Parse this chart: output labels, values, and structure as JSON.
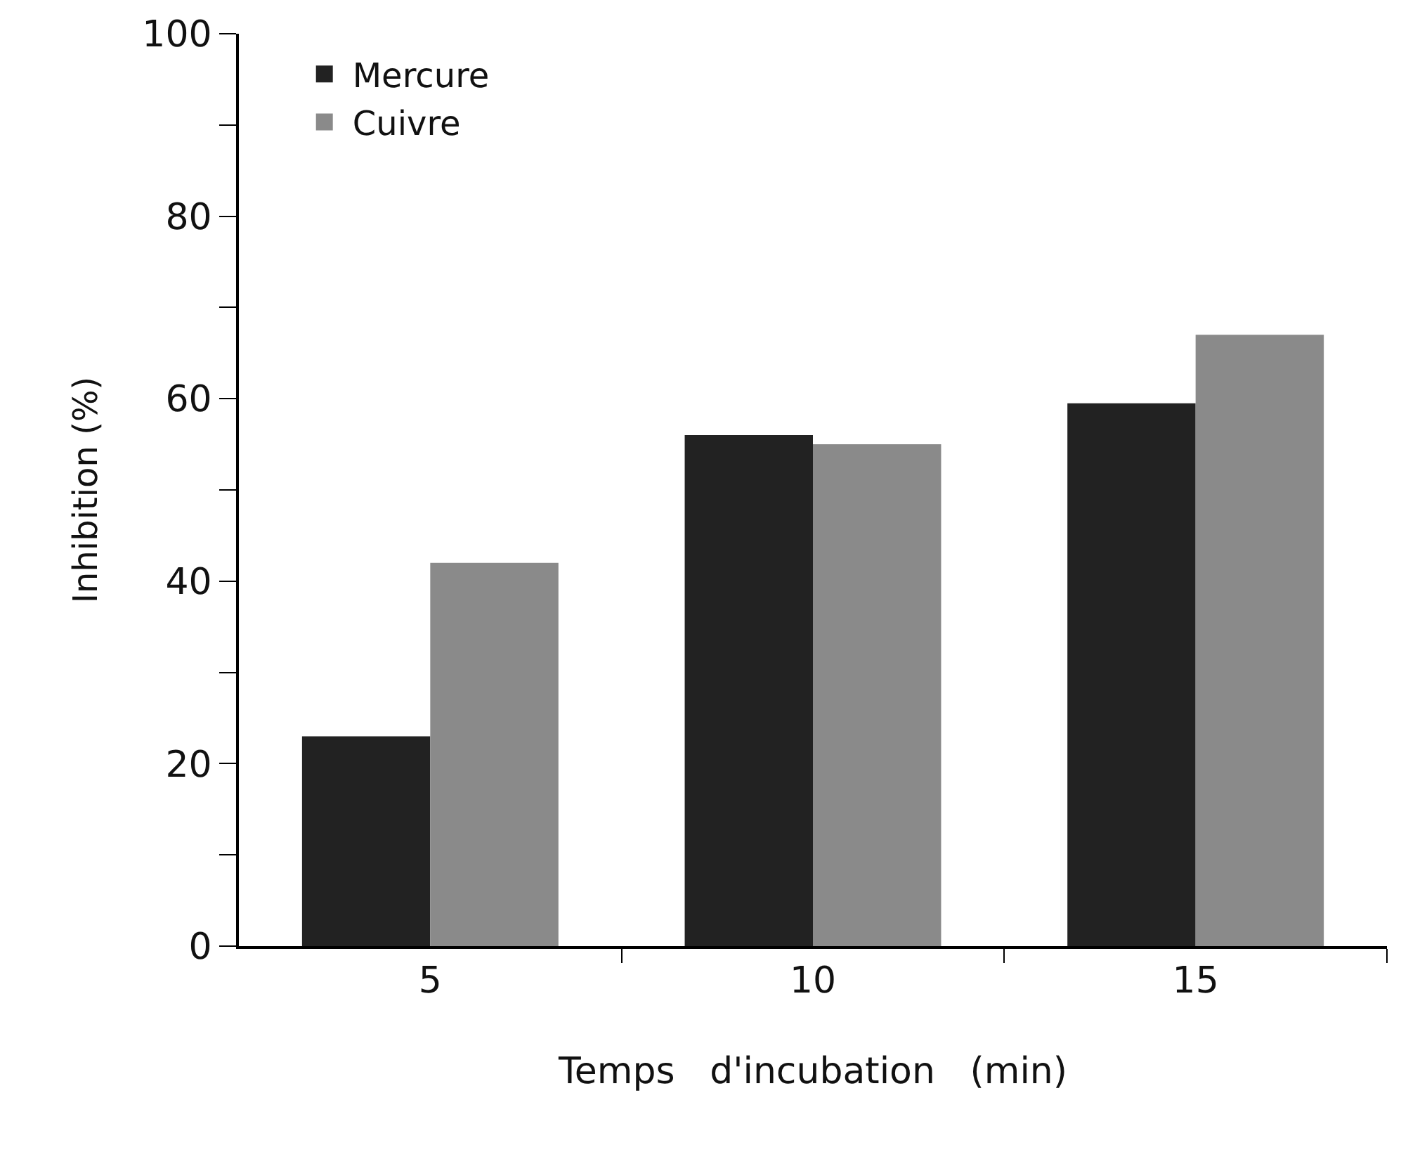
{
  "chart_data": {
    "type": "bar",
    "xlabel": "Temps   d'incubation   (min)",
    "ylabel": "Inhibition (%)",
    "categories": [
      "5",
      "10",
      "15"
    ],
    "series": [
      {
        "name": "Mercure",
        "color": "#222222",
        "values": [
          23,
          56,
          59.5
        ]
      },
      {
        "name": "Cuivre",
        "color": "#8a8a8a",
        "values": [
          42,
          55,
          67
        ]
      }
    ],
    "ylim": [
      0,
      100
    ],
    "yticks": [
      0,
      {
        "value": 10,
        "label": null
      },
      20,
      {
        "value": 30,
        "label": null
      },
      40,
      {
        "value": 50,
        "label": null
      },
      60,
      {
        "value": 70,
        "label": null
      },
      80,
      {
        "value": 90,
        "label": null
      },
      100
    ],
    "legend": "top left"
  }
}
